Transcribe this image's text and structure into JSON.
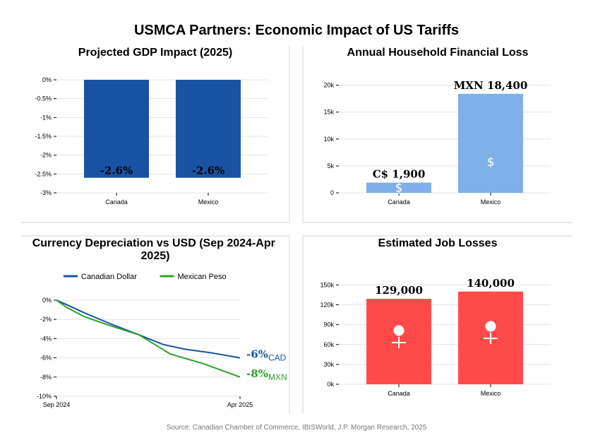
{
  "title": "USMCA Partners: Economic Impact of US Tariffs",
  "source": "Source: Canadian Chamber of Commerce, IBISWorld, J.P. Morgan Research, 2025",
  "chart_data": [
    {
      "type": "bar",
      "title": "Projected GDP Impact (2025)",
      "categories": [
        "Canada",
        "Mexico"
      ],
      "values": [
        -2.6,
        -2.6
      ],
      "data_labels": [
        "-2.6%",
        "-2.6%"
      ],
      "ylim": [
        -3,
        0
      ],
      "yticks": [
        0,
        -0.5,
        -1,
        -1.5,
        -2,
        -2.5,
        -3
      ],
      "ytick_labels": [
        "0%",
        "-0.5%",
        "-1%",
        "-1.5%",
        "-2%",
        "-2.5%",
        "-3%"
      ],
      "color": "#1a52a3",
      "grid": true
    },
    {
      "type": "bar",
      "title": "Annual Household Financial Loss",
      "categories": [
        "Canada",
        "Mexico"
      ],
      "values": [
        1900,
        18400
      ],
      "data_labels": [
        "C$ 1,900",
        "MXN 18,400"
      ],
      "bar_icon": "$",
      "ylim": [
        0,
        21000
      ],
      "yticks": [
        0,
        5000,
        10000,
        15000,
        20000
      ],
      "ytick_labels": [
        "0",
        "5k",
        "10k",
        "15k",
        "20k"
      ],
      "color": "#7fb0ea",
      "grid": true
    },
    {
      "type": "line",
      "title": "Currency Depreciation vs USD (Sep 2024-Apr 2025)",
      "x_labels": [
        "Sep 2024",
        "Apr 2025"
      ],
      "ylim": [
        -10,
        0
      ],
      "yticks": [
        0,
        -2,
        -4,
        -6,
        -8,
        -10
      ],
      "ytick_labels": [
        "0%",
        "-2%",
        "-4%",
        "-6%",
        "-8%",
        "-10%"
      ],
      "legend": "top",
      "grid": true,
      "series": [
        {
          "name": "Canadian Dollar",
          "color": "#1a52a3",
          "end_value_label": "-6%",
          "end_code": "CAD",
          "points": [
            [
              0,
              0
            ],
            [
              0.06,
              -0.5
            ],
            [
              0.15,
              -1.3
            ],
            [
              0.3,
              -2.5
            ],
            [
              0.45,
              -3.6
            ],
            [
              0.58,
              -4.6
            ],
            [
              0.7,
              -5.1
            ],
            [
              0.85,
              -5.5
            ],
            [
              1,
              -6
            ]
          ]
        },
        {
          "name": "Mexican Peso",
          "color": "#2ca02c",
          "end_value_label": "-8%",
          "end_code": "MXN",
          "points": [
            [
              0,
              0
            ],
            [
              0.06,
              -0.8
            ],
            [
              0.15,
              -1.7
            ],
            [
              0.3,
              -2.7
            ],
            [
              0.45,
              -3.6
            ],
            [
              0.62,
              -5.6
            ],
            [
              0.8,
              -6.6
            ],
            [
              1,
              -8
            ]
          ]
        }
      ]
    },
    {
      "type": "bar",
      "title": "Estimated Job Losses",
      "categories": [
        "Canada",
        "Mexico"
      ],
      "values": [
        129000,
        140000
      ],
      "data_labels": [
        "129,000",
        "140,000"
      ],
      "bar_icon": "person",
      "ylim": [
        0,
        160000
      ],
      "yticks": [
        0,
        30000,
        60000,
        90000,
        120000,
        150000
      ],
      "ytick_labels": [
        "0k",
        "30k",
        "60k",
        "90k",
        "120k",
        "150k"
      ],
      "color": "#ff4a4a",
      "grid": true
    }
  ]
}
